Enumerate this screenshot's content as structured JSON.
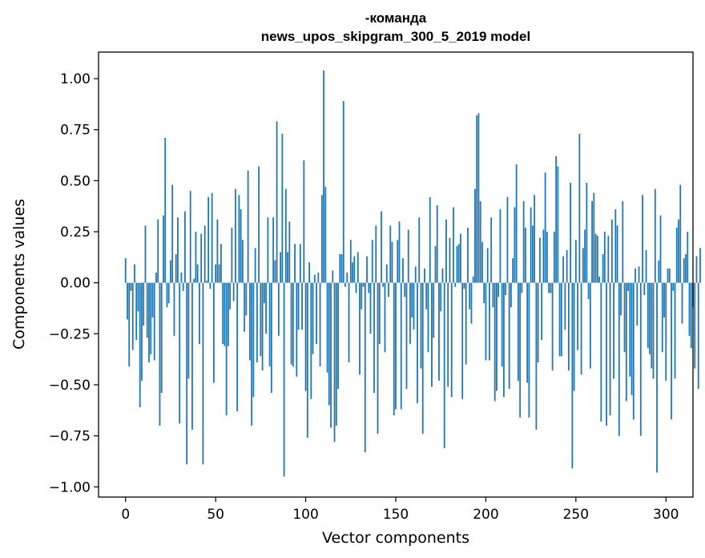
{
  "chart_data": {
    "type": "bar",
    "title_line1": "-команда",
    "title_line2": "news_upos_skipgram_300_5_2019 model",
    "xlabel": "Vector components",
    "ylabel": "Components values",
    "xlim": [
      -15,
      315
    ],
    "ylim": [
      -1.05,
      1.13
    ],
    "x_ticks": [
      0,
      50,
      100,
      150,
      200,
      250,
      300
    ],
    "x_tick_labels": [
      "0",
      "50",
      "100",
      "150",
      "200",
      "250",
      "300"
    ],
    "y_ticks": [
      -1.0,
      -0.75,
      -0.5,
      -0.25,
      0.0,
      0.25,
      0.5,
      0.75,
      1.0
    ],
    "y_tick_labels": [
      "−1.00",
      "−0.75",
      "−0.50",
      "−0.25",
      "0.00",
      "0.25",
      "0.50",
      "0.75",
      "1.00"
    ],
    "bar_color": "#1f77b4",
    "grid": false,
    "values": [
      0.12,
      -0.18,
      -0.41,
      -0.04,
      -0.33,
      0.09,
      -0.28,
      -0.14,
      -0.61,
      -0.48,
      -0.21,
      0.28,
      -0.27,
      -0.39,
      -0.35,
      -0.17,
      -0.38,
      0.05,
      0.31,
      -0.7,
      -0.54,
      0.33,
      0.71,
      -0.12,
      -0.1,
      0.11,
      0.48,
      -0.26,
      0.14,
      0.32,
      -0.69,
      0.05,
      -0.04,
      0.35,
      -0.89,
      -0.47,
      0.45,
      -0.72,
      0.02,
      0.25,
      0.09,
      -0.3,
      0.24,
      -0.89,
      0.28,
      0.01,
      0.42,
      -0.03,
      0.44,
      -0.49,
      0.09,
      0.31,
      0.09,
      0.19,
      -0.3,
      -0.31,
      -0.65,
      -0.31,
      -0.13,
      0.27,
      -0.09,
      0.46,
      -0.63,
      0.43,
      0.36,
      0.21,
      -0.24,
      -0.16,
      0.55,
      -0.38,
      -0.7,
      -0.56,
      0.17,
      -0.39,
      0.57,
      -0.36,
      -0.43,
      -0.1,
      -0.25,
      0.32,
      -0.41,
      -0.54,
      0.32,
      0.11,
      0.79,
      -0.26,
      0.15,
      0.73,
      -0.95,
      0.46,
      0.15,
      0.3,
      -0.4,
      -0.41,
      0.19,
      -0.46,
      -0.23,
      0.19,
      -0.23,
      0.6,
      -0.53,
      -0.76,
      0.1,
      -0.57,
      -0.35,
      0.04,
      -0.3,
      0.05,
      -0.41,
      0.43,
      1.04,
      0.47,
      -0.44,
      -0.6,
      -0.71,
      0.06,
      -0.78,
      -0.7,
      -0.52,
      0.14,
      0.14,
      0.89,
      -0.02,
      0.05,
      -0.39,
      0.21,
      0.1,
      0.13,
      -0.05,
      0.15,
      -0.45,
      -0.13,
      -0.02,
      -0.83,
      0.13,
      -0.05,
      -0.25,
      0.21,
      -0.54,
      0.28,
      -0.74,
      -0.3,
      0.35,
      -0.02,
      -0.34,
      0.09,
      -0.07,
      0.28,
      0.2,
      -0.65,
      -0.62,
      0.21,
      0.3,
      -0.62,
      0.12,
      -0.07,
      -0.52,
      0.26,
      -0.3,
      -0.17,
      -0.23,
      0.08,
      -0.59,
      0.32,
      -0.42,
      -0.74,
      0.07,
      -0.13,
      -0.34,
      0.42,
      -0.51,
      -0.27,
      0.18,
      0.38,
      -0.48,
      -0.14,
      0.07,
      -0.81,
      0.31,
      -0.51,
      0.22,
      -0.56,
      0.37,
      -0.02,
      0.18,
      0.19,
      0.24,
      -0.57,
      -0.03,
      -0.4,
      0.27,
      -0.13,
      -0.2,
      0.03,
      0.46,
      0.82,
      0.83,
      0.4,
      0.2,
      -0.1,
      -0.38,
      0.17,
      -0.38,
      0.32,
      -0.12,
      -0.58,
      -0.53,
      -0.07,
      0.36,
      -0.41,
      -0.56,
      -0.06,
      0.42,
      -0.52,
      -0.12,
      0.12,
      0.37,
      0.58,
      -0.48,
      -0.66,
      -0.05,
      0.4,
      0.27,
      -0.49,
      -0.66,
      0.37,
      0.28,
      0.43,
      -0.72,
      -0.39,
      0.22,
      -0.28,
      0.26,
      0.54,
      0.25,
      -0.05,
      -0.05,
      -0.43,
      0.25,
      0.62,
      0.57,
      -0.36,
      -0.36,
      0.13,
      -0.23,
      0.16,
      -0.43,
      0.49,
      -0.91,
      -0.53,
      0.21,
      -0.33,
      0.73,
      -0.45,
      0.17,
      0.26,
      0.49,
      -0.08,
      -0.42,
      0.4,
      0.44,
      0.24,
      0.23,
      0.03,
      -0.68,
      0.14,
      0.25,
      -0.7,
      0.23,
      -0.65,
      0.31,
      -0.47,
      0.36,
      0.28,
      -0.75,
      -0.16,
      0.4,
      -0.34,
      -0.58,
      -0.04,
      -0.46,
      -0.55,
      -0.67,
      0.07,
      -0.21,
      0.08,
      -0.75,
      0.43,
      -0.06,
      0.16,
      -0.32,
      -0.35,
      -0.42,
      -0.47,
      0.46,
      -0.93,
      0.11,
      0.33,
      -0.34,
      -0.17,
      -0.48,
      0.07,
      0.07,
      -0.67,
      -0.04,
      -0.47,
      0.27,
      0.31,
      0.48,
      -0.2,
      0.12,
      0.14,
      0.25,
      -0.26,
      -0.32,
      -0.12,
      -0.42,
      0.13,
      -0.52,
      0.17
    ]
  }
}
